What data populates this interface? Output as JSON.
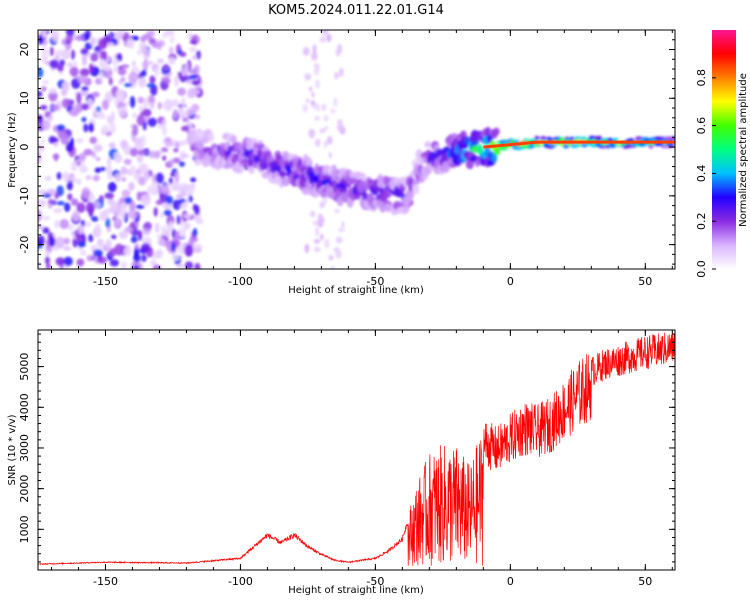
{
  "page_title": "KOM5.2024.011.22.01.G14",
  "chart_data": [
    {
      "type": "heatmap",
      "title": "KOM5.2024.011.22.01.G14",
      "xlabel": "Height of straight line (km)",
      "ylabel": "Frequency (Hz)",
      "xlim": [
        -175,
        61
      ],
      "ylim": [
        -25,
        24
      ],
      "x_ticks": [
        -150,
        -100,
        -50,
        0,
        50
      ],
      "x_tick_labels": [
        "-150",
        "-100",
        "-50",
        "0",
        "50"
      ],
      "y_ticks": [
        -20,
        -10,
        0,
        10,
        20
      ],
      "y_tick_labels": [
        "-20",
        "-10",
        "0",
        "10",
        "20"
      ],
      "colorbar": {
        "label": "Normalized spectral amplitude",
        "range": [
          0,
          1
        ],
        "ticks": [
          0,
          0.2,
          0.4,
          0.6,
          0.8
        ],
        "tick_labels": [
          "0.0",
          "0.2",
          "0.4",
          "0.6",
          "0.8"
        ],
        "colormap": [
          "#ffffff",
          "#d9b3ff",
          "#8a2be2",
          "#2200ff",
          "#00c0ff",
          "#00ff80",
          "#40ff00",
          "#ffff00",
          "#ff8000",
          "#ff0000",
          "#ff1493"
        ]
      },
      "ridge": {
        "x": [
          -115,
          -105,
          -95,
          -85,
          -75,
          -65,
          -55,
          -45,
          -38,
          -35,
          -30,
          -20,
          -10,
          0,
          10,
          20,
          30,
          40,
          50,
          61
        ],
        "freq": [
          0.0,
          -1.0,
          -2.0,
          -4.0,
          -6.0,
          -8.0,
          -9.0,
          -9.5,
          -10.0,
          -6.0,
          -2.0,
          -1.0,
          0.0,
          0.5,
          1.0,
          1.0,
          1.0,
          1.0,
          1.0,
          1.0
        ],
        "amplitude": [
          0.2,
          0.25,
          0.3,
          0.3,
          0.3,
          0.3,
          0.3,
          0.3,
          0.25,
          0.2,
          0.25,
          0.4,
          0.6,
          0.9,
          0.9,
          0.85,
          0.8,
          0.75,
          0.7,
          0.6
        ]
      },
      "grid": false
    },
    {
      "type": "line",
      "xlabel": "Height of straight line (km)",
      "ylabel": "SNR (10 * v/v)",
      "xlim": [
        -175,
        61
      ],
      "ylim": [
        0,
        5900
      ],
      "x_ticks": [
        -150,
        -100,
        -50,
        0,
        50
      ],
      "x_tick_labels": [
        "-150",
        "-100",
        "-50",
        "0",
        "50"
      ],
      "y_ticks": [
        1000,
        2000,
        3000,
        4000,
        5000
      ],
      "y_tick_labels": [
        "1000",
        "2000",
        "3000",
        "4000",
        "5000"
      ],
      "line_color": "#ff0000",
      "envelope_x": [
        -175,
        -150,
        -120,
        -100,
        -95,
        -90,
        -85,
        -80,
        -75,
        -70,
        -65,
        -60,
        -55,
        -50,
        -45,
        -40,
        -35,
        -30,
        -25,
        -20,
        -15,
        -10,
        -5,
        0,
        5,
        10,
        15,
        20,
        25,
        30,
        35,
        40,
        45,
        50,
        55,
        61
      ],
      "envelope_y": [
        150,
        200,
        180,
        300,
        600,
        900,
        700,
        900,
        600,
        400,
        250,
        200,
        250,
        300,
        500,
        800,
        2000,
        2800,
        3000,
        3000,
        2500,
        3500,
        3300,
        3600,
        3900,
        3800,
        4000,
        4400,
        4800,
        5100,
        5300,
        5400,
        5500,
        5600,
        5650,
        5750
      ],
      "grid": false
    }
  ]
}
